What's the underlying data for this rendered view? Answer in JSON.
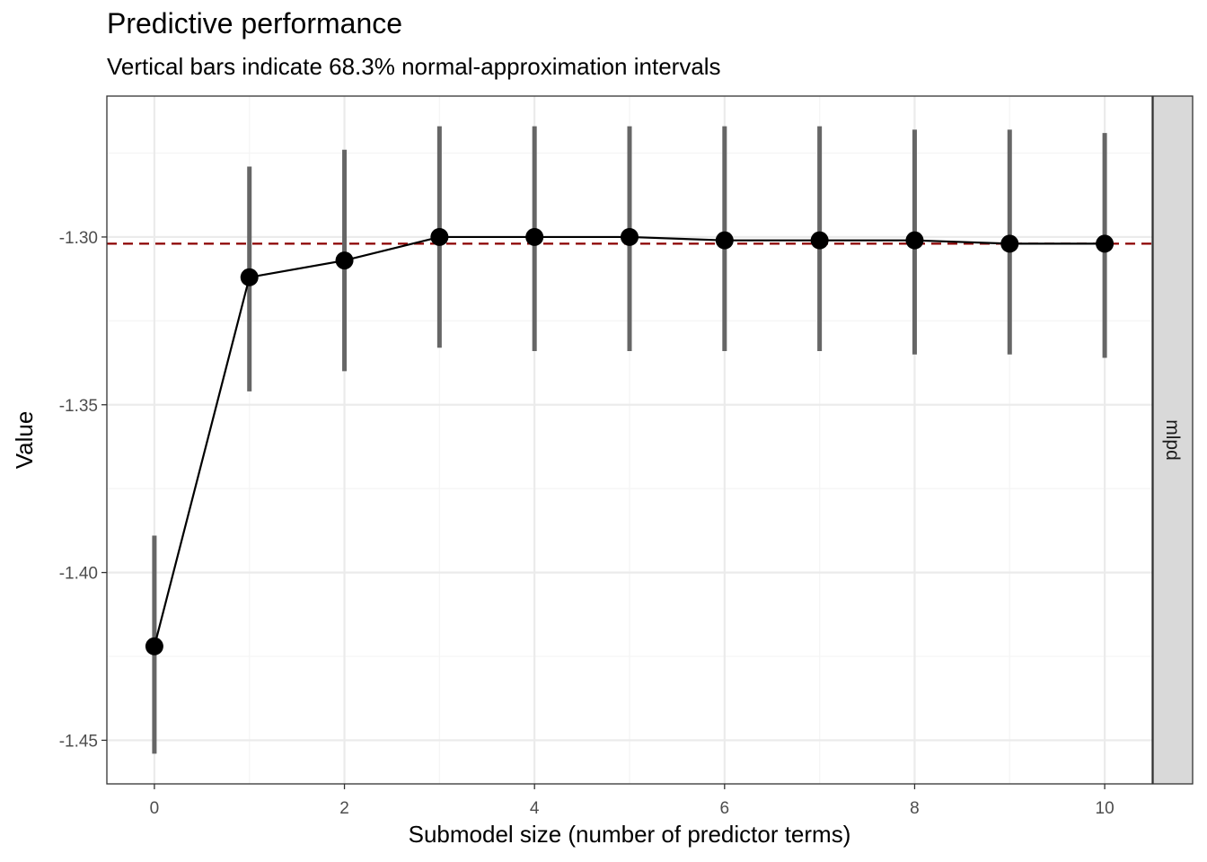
{
  "chart_data": {
    "type": "scatter",
    "title": "Predictive performance",
    "subtitle": "Vertical bars indicate 68.3% normal-approximation intervals",
    "xlabel": "Submodel size (number of predictor terms)",
    "ylabel": "Value",
    "facet_label": "mlpd",
    "xlim": [
      -0.5,
      10.5
    ],
    "ylim": [
      -1.463,
      -1.258
    ],
    "x_ticks": [
      0,
      2,
      4,
      6,
      8,
      10
    ],
    "y_ticks": [
      -1.3,
      -1.35,
      -1.4,
      -1.45
    ],
    "y_tick_labels": [
      "-1.30",
      "-1.35",
      "-1.40",
      "-1.45"
    ],
    "reference_line": {
      "y": -1.302,
      "color": "#8b0000",
      "style": "dashed"
    },
    "grid": true,
    "points": [
      {
        "x": 0,
        "y": -1.422,
        "lower": -1.454,
        "upper": -1.389
      },
      {
        "x": 1,
        "y": -1.312,
        "lower": -1.346,
        "upper": -1.279
      },
      {
        "x": 2,
        "y": -1.307,
        "lower": -1.34,
        "upper": -1.274
      },
      {
        "x": 3,
        "y": -1.3,
        "lower": -1.333,
        "upper": -1.267
      },
      {
        "x": 4,
        "y": -1.3,
        "lower": -1.334,
        "upper": -1.267
      },
      {
        "x": 5,
        "y": -1.3,
        "lower": -1.334,
        "upper": -1.267
      },
      {
        "x": 6,
        "y": -1.301,
        "lower": -1.334,
        "upper": -1.267
      },
      {
        "x": 7,
        "y": -1.301,
        "lower": -1.334,
        "upper": -1.267
      },
      {
        "x": 8,
        "y": -1.301,
        "lower": -1.335,
        "upper": -1.268
      },
      {
        "x": 9,
        "y": -1.302,
        "lower": -1.335,
        "upper": -1.268
      },
      {
        "x": 10,
        "y": -1.302,
        "lower": -1.336,
        "upper": -1.269
      }
    ],
    "colors": {
      "interval": "#666666",
      "point": "#000000",
      "line": "#000000",
      "strip_bg": "#d9d9d9",
      "grid_major": "#ebebeb",
      "grid_minor": "#f5f5f5"
    }
  }
}
